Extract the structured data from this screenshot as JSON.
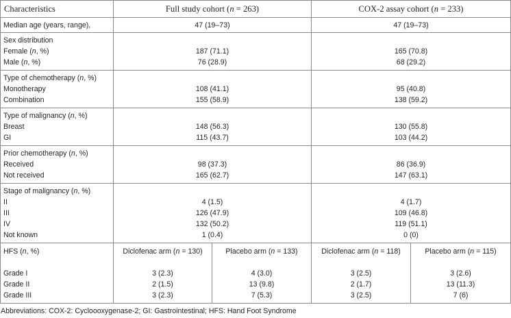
{
  "header": {
    "characteristics": "Characteristics",
    "full_cohort_prefix": "Full study cohort (",
    "full_cohort_n": "n",
    "full_cohort_suffix": " = 263)",
    "cox_cohort_prefix": "COX-2 assay cohort (",
    "cox_cohort_n": "n",
    "cox_cohort_suffix": " = 233)"
  },
  "median_age": {
    "label": "Median age (years, range),",
    "full": "47 (19–73)",
    "cox": "47 (19–73)"
  },
  "sections": {
    "sex": {
      "title": "Sex distribution",
      "rows": [
        {
          "pre": "Female (",
          "ital": "n",
          "post": ", %)",
          "full": "187 (71.1)",
          "cox": "165 (70.8)"
        },
        {
          "pre": "Male (",
          "ital": "n",
          "post": ", %)",
          "full": "76 (28.9)",
          "cox": "68 (29.2)"
        }
      ]
    },
    "chemo_type": {
      "title_pre": "Type of chemotherapy (",
      "title_ital": "n",
      "title_post": ", %)",
      "rows": [
        {
          "label": "Monotherapy",
          "full": "108 (41.1)",
          "cox": "95 (40.8)"
        },
        {
          "label": "Combination",
          "full": "155 (58.9)",
          "cox": "138 (59.2)"
        }
      ]
    },
    "malignancy_type": {
      "title_pre": "Type of malignancy (",
      "title_ital": "n",
      "title_post": ", %)",
      "rows": [
        {
          "label": "Breast",
          "full": "148 (56.3)",
          "cox": "130 (55.8)"
        },
        {
          "label": "GI",
          "full": "115 (43.7)",
          "cox": "103 (44.2)"
        }
      ]
    },
    "prior_chemo": {
      "title_pre": "Prior chemotherapy (",
      "title_ital": "n",
      "title_post": ", %)",
      "rows": [
        {
          "label": "Received",
          "full": "98 (37.3)",
          "cox": "86 (36.9)"
        },
        {
          "label": "Not received",
          "full": "165 (62.7)",
          "cox": "147 (63.1)"
        }
      ]
    },
    "stage": {
      "title_pre": "Stage of malignancy (",
      "title_ital": "n",
      "title_post": ", %)",
      "rows": [
        {
          "label": "II",
          "full": "4 (1.5)",
          "cox": "4 (1.7)"
        },
        {
          "label": "III",
          "full": "126 (47.9)",
          "cox": "109 (46.8)"
        },
        {
          "label": "IV",
          "full": "132 (50.2)",
          "cox": "119 (51.1)"
        },
        {
          "label": "Not known",
          "full": "1 (0.4)",
          "cox": "0 (0)"
        }
      ]
    }
  },
  "hfs": {
    "title_pre": "HFS (",
    "title_ital": "n",
    "title_post": ", %)",
    "arms": [
      {
        "pre": "Diclofenac arm (",
        "ital": "n",
        "post": " = 130)"
      },
      {
        "pre": "Placebo arm (",
        "ital": "n",
        "post": " = 133)"
      },
      {
        "pre": "Diclofenac arm (",
        "ital": "n",
        "post": " = 118)"
      },
      {
        "pre": "Placebo arm (",
        "ital": "n",
        "post": " = 115)"
      }
    ],
    "grades": [
      {
        "label": "Grade I",
        "values": [
          "3 (2.3)",
          "4 (3.0)",
          "3 (2.5)",
          "3 (2.6)"
        ]
      },
      {
        "label": "Grade II",
        "values": [
          "2 (1.5)",
          "13 (9.8)",
          "2 (1.7)",
          "13 (11.3)"
        ]
      },
      {
        "label": "Grade III",
        "values": [
          "3 (2.3)",
          "7 (5.3)",
          "3 (2.5)",
          "7 (6)"
        ]
      }
    ]
  },
  "footnote": "Abbreviations: COX-2: Cycloooxygenase-2; GI: Gastrointestinal; HFS: Hand Foot Syndrome"
}
